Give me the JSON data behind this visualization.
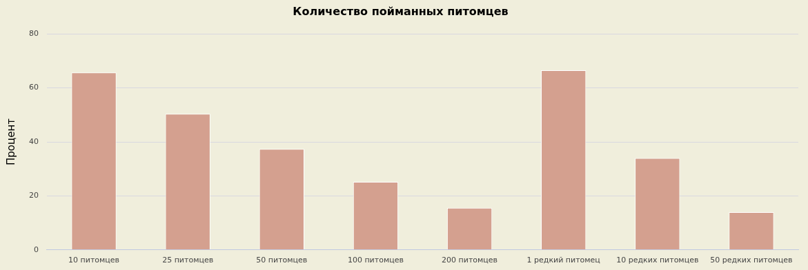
{
  "chart_data": {
    "type": "bar",
    "title": "Количество пойманных питомцев",
    "ylabel": "Процент",
    "categories": [
      "10 питомцев",
      "25 питомцев",
      "50 питомцев",
      "100 питомцев",
      "200 питомцев",
      "1 редкий питомец",
      "10 редких питомцев",
      "50 редких питомцев"
    ],
    "values": [
      65.7,
      50.4,
      37.4,
      25.2,
      15.6,
      66.5,
      34.0,
      14.0
    ],
    "color": "#d4a08f",
    "ylim": [
      0,
      80
    ],
    "yticks": [
      0,
      20,
      40,
      60,
      80
    ],
    "grid": "y",
    "legend": false
  }
}
